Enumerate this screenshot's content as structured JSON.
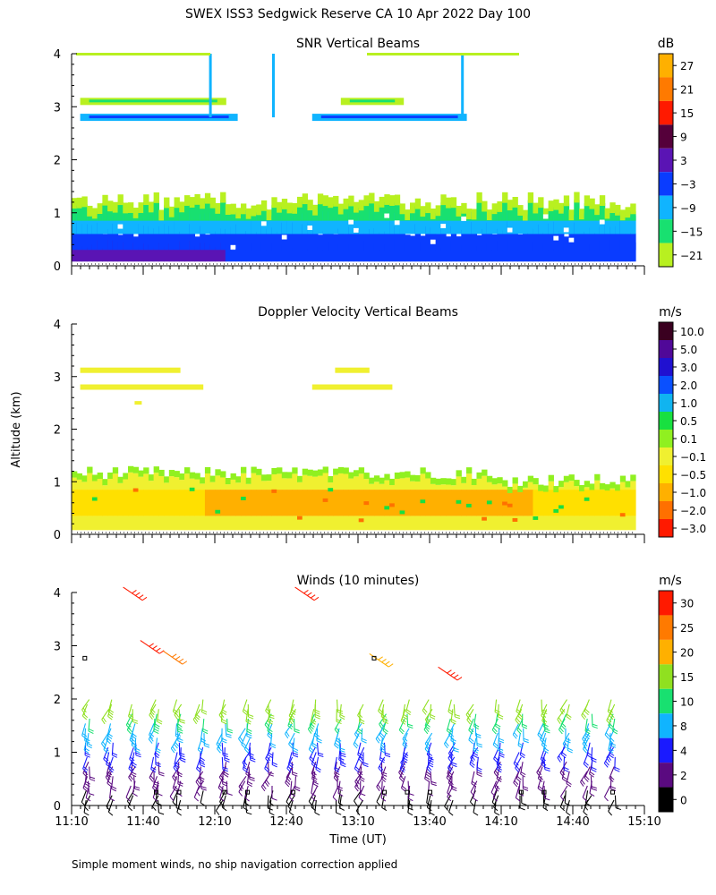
{
  "title": "SWEX ISS3 Sedgwick Reserve CA  10 Apr 2022 Day 100",
  "ylabel": "Altitude (km)",
  "xlabel": "Time (UT)",
  "footnote": "Simple moment winds, no ship navigation correction applied",
  "colors": {
    "background": "#ffffff",
    "axis": "#000000"
  },
  "chart_data": [
    {
      "type": "heatmap",
      "title": "SNR Vertical Beams",
      "unit": "dB",
      "ylim": [
        0,
        4
      ],
      "yticks": [
        "0",
        "1",
        "2",
        "3",
        "4"
      ],
      "colorbar": {
        "labels": [
          "27",
          "21",
          "15",
          "9",
          "3",
          "−3",
          "−9",
          "−15",
          "−21"
        ],
        "colors": [
          "#ffb000",
          "#ff7a00",
          "#ff1a00",
          "#55003a",
          "#5a14b4",
          "#0a3cff",
          "#10b4ff",
          "#18e070",
          "#b8f020"
        ]
      }
    },
    {
      "type": "heatmap",
      "title": "Doppler Velocity Vertical Beams",
      "unit": "m/s",
      "ylim": [
        0,
        4
      ],
      "yticks": [
        "0",
        "1",
        "2",
        "3",
        "4"
      ],
      "colorbar": {
        "labels": [
          "10.0",
          "5.0",
          "3.0",
          "2.0",
          "1.0",
          "0.5",
          "0.1",
          "−0.1",
          "−0.5",
          "−1.0",
          "−2.0",
          "−3.0"
        ],
        "colors": [
          "#3a0020",
          "#500898",
          "#2010d0",
          "#0a50ff",
          "#10b4f0",
          "#18e040",
          "#90f020",
          "#f0f030",
          "#ffe000",
          "#ffb000",
          "#ff7000",
          "#ff1a00"
        ]
      }
    },
    {
      "type": "scatter",
      "title": "Winds (10 minutes)",
      "unit": "m/s",
      "ylim": [
        0,
        4
      ],
      "yticks": [
        "0",
        "1",
        "2",
        "3",
        "4"
      ],
      "xticks": [
        "11:10",
        "11:40",
        "12:10",
        "12:40",
        "13:10",
        "13:40",
        "14:10",
        "14:40",
        "15:10"
      ],
      "colorbar": {
        "labels": [
          "30",
          "25",
          "20",
          "15",
          "10",
          "8",
          "4",
          "2",
          "0"
        ],
        "colors": [
          "#ff1a00",
          "#ff7a00",
          "#ffb000",
          "#90e020",
          "#18e070",
          "#10b4ff",
          "#1a1aff",
          "#5a0a80",
          "#000000"
        ]
      }
    }
  ]
}
